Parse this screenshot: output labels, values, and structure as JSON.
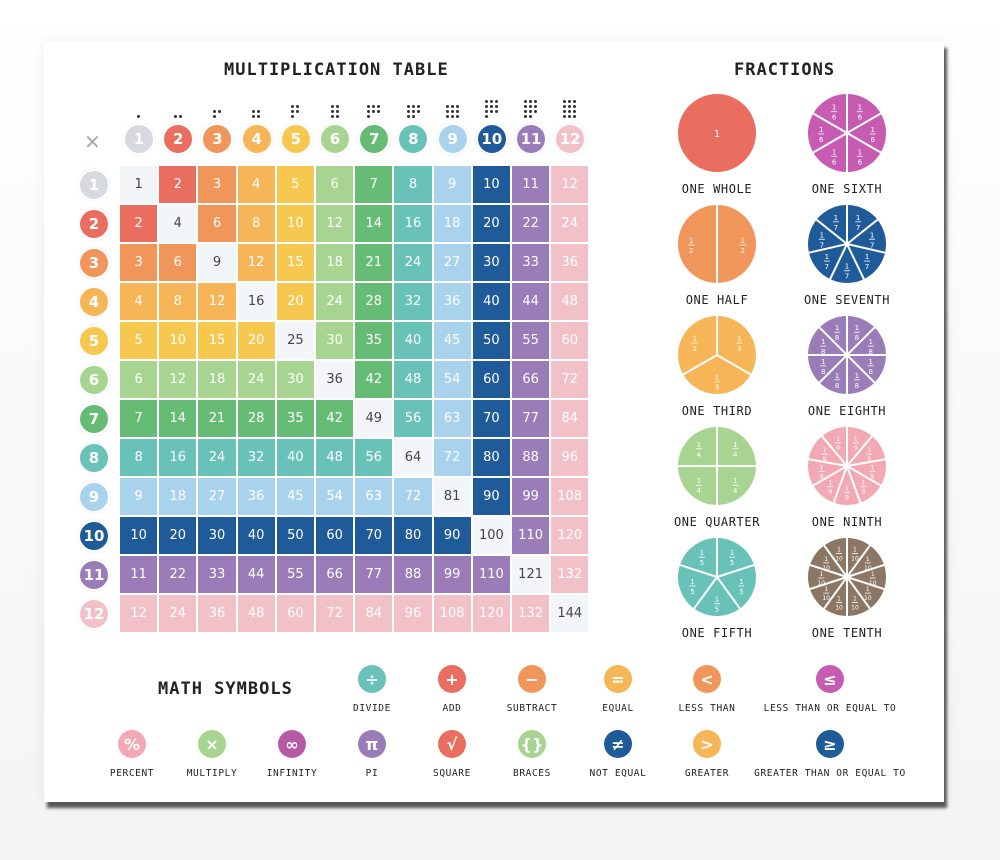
{
  "multiplication_table": {
    "title": "MULTIPLICATION TABLE",
    "corner_icon": "x-icon",
    "headers": [
      "1",
      "2",
      "3",
      "4",
      "5",
      "6",
      "7",
      "8",
      "9",
      "10",
      "11",
      "12"
    ],
    "colors": [
      "#d6d9dd",
      "#ea6e5f",
      "#f0965a",
      "#f6b556",
      "#f6c84f",
      "#a7d591",
      "#66bc74",
      "#68c2b7",
      "#a9d3ec",
      "#1f5a99",
      "#9a7cb8",
      "#f2c1c7"
    ],
    "rows": [
      [
        "1",
        "2",
        "3",
        "4",
        "5",
        "6",
        "7",
        "8",
        "9",
        "10",
        "11",
        "12"
      ],
      [
        "2",
        "4",
        "6",
        "8",
        "10",
        "12",
        "14",
        "16",
        "18",
        "20",
        "22",
        "24"
      ],
      [
        "3",
        "6",
        "9",
        "12",
        "15",
        "18",
        "21",
        "24",
        "27",
        "30",
        "33",
        "36"
      ],
      [
        "4",
        "8",
        "12",
        "16",
        "20",
        "24",
        "28",
        "32",
        "36",
        "40",
        "44",
        "48"
      ],
      [
        "5",
        "10",
        "15",
        "20",
        "25",
        "30",
        "35",
        "40",
        "45",
        "50",
        "55",
        "60"
      ],
      [
        "6",
        "12",
        "18",
        "24",
        "30",
        "36",
        "42",
        "48",
        "54",
        "60",
        "66",
        "72"
      ],
      [
        "7",
        "14",
        "21",
        "28",
        "35",
        "42",
        "49",
        "56",
        "63",
        "70",
        "77",
        "84"
      ],
      [
        "8",
        "16",
        "24",
        "32",
        "40",
        "48",
        "56",
        "64",
        "72",
        "80",
        "88",
        "96"
      ],
      [
        "9",
        "18",
        "27",
        "36",
        "45",
        "54",
        "63",
        "72",
        "81",
        "90",
        "99",
        "108"
      ],
      [
        "10",
        "20",
        "30",
        "40",
        "50",
        "60",
        "70",
        "80",
        "90",
        "100",
        "110",
        "120"
      ],
      [
        "11",
        "22",
        "33",
        "44",
        "55",
        "66",
        "77",
        "88",
        "99",
        "110",
        "121",
        "132"
      ],
      [
        "12",
        "24",
        "36",
        "48",
        "60",
        "72",
        "84",
        "96",
        "108",
        "120",
        "132",
        "144"
      ]
    ]
  },
  "fractions": {
    "title": "FRACTIONS",
    "items": [
      {
        "label": "ONE WHOLE",
        "parts": 1,
        "numeral": "1",
        "color": "#ea6e5f"
      },
      {
        "label": "ONE SIXTH",
        "parts": 6,
        "numeral": "6",
        "color": "#c75bb1"
      },
      {
        "label": "ONE HALF",
        "parts": 2,
        "numeral": "2",
        "color": "#f0965a"
      },
      {
        "label": "ONE SEVENTH",
        "parts": 7,
        "numeral": "7",
        "color": "#1f5a99"
      },
      {
        "label": "ONE THIRD",
        "parts": 3,
        "numeral": "3",
        "color": "#f6b556"
      },
      {
        "label": "ONE EIGHTH",
        "parts": 8,
        "numeral": "8",
        "color": "#9a7cb8"
      },
      {
        "label": "ONE QUARTER",
        "parts": 4,
        "numeral": "4",
        "color": "#a7d591"
      },
      {
        "label": "ONE NINTH",
        "parts": 9,
        "numeral": "9",
        "color": "#f2a9b3"
      },
      {
        "label": "ONE FIFTH",
        "parts": 5,
        "numeral": "5",
        "color": "#68c2b7"
      },
      {
        "label": "ONE TENTH",
        "parts": 10,
        "numeral": "10",
        "color": "#8b7763"
      }
    ]
  },
  "math_symbols": {
    "title": "MATH SYMBOLS",
    "items": [
      {
        "label": "DIVIDE",
        "glyph": "÷",
        "color": "#68c2b7"
      },
      {
        "label": "ADD",
        "glyph": "+",
        "color": "#ea6e5f"
      },
      {
        "label": "SUBTRACT",
        "glyph": "−",
        "color": "#f0965a"
      },
      {
        "label": "EQUAL",
        "glyph": "=",
        "color": "#f6b556"
      },
      {
        "label": "LESS THAN",
        "glyph": "<",
        "color": "#f0965a"
      },
      {
        "label": "LESS THAN OR EQUAL TO",
        "glyph": "≤",
        "color": "#c75bb1"
      },
      {
        "label": "PERCENT",
        "glyph": "%",
        "color": "#f2a9b3"
      },
      {
        "label": "MULTIPLY",
        "glyph": "×",
        "color": "#a7d591"
      },
      {
        "label": "INFINITY",
        "glyph": "∞",
        "color": "#b75aa4"
      },
      {
        "label": "PI",
        "glyph": "π",
        "color": "#9a7cb8"
      },
      {
        "label": "SQUARE",
        "glyph": "√",
        "color": "#ea6e5f"
      },
      {
        "label": "BRACES",
        "glyph": "{}",
        "color": "#a7d591"
      },
      {
        "label": "NOT EQUAL",
        "glyph": "≠",
        "color": "#1f5a99"
      },
      {
        "label": "GREATER",
        "glyph": ">",
        "color": "#f6b556"
      },
      {
        "label": "GREATER THAN OR EQUAL TO",
        "glyph": "≥",
        "color": "#1f5a99"
      }
    ]
  }
}
